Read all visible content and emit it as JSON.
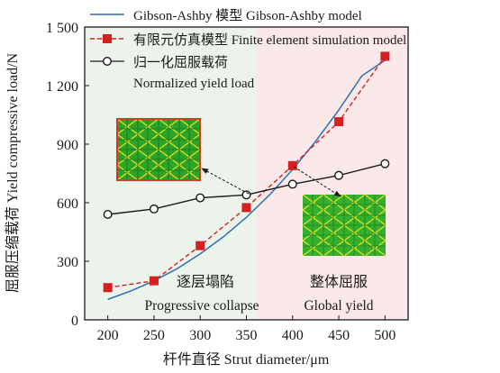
{
  "chart_data": {
    "type": "line",
    "xlabel": "杆件直径 Strut diameter/μm",
    "ylabel": "屈服压缩载荷 Yield compressive load/N",
    "xlim": [
      175,
      525
    ],
    "ylim": [
      0,
      1500
    ],
    "xticks": [
      200,
      250,
      300,
      350,
      400,
      450,
      500
    ],
    "xtick_labels": [
      "200",
      "250",
      "300",
      "350",
      "400",
      "450",
      "500"
    ],
    "yticks": [
      0,
      300,
      600,
      900,
      1200,
      1500
    ],
    "ytick_labels": [
      "0",
      "300",
      "600",
      "900",
      "1 200",
      "1 500"
    ],
    "regions": [
      {
        "x_range": [
          175,
          360
        ],
        "color": "#ebf3eb",
        "label_cn": "逐层塌陷",
        "label_en": "Progressive collapse"
      },
      {
        "x_range": [
          360,
          525
        ],
        "color": "#fbe8e8",
        "label_cn": "整体屈服",
        "label_en": "Global yield"
      }
    ],
    "series": [
      {
        "name": "Gibson-Ashby 模型 Gibson-Ashby model",
        "style": "solid-line",
        "color": "#2f6fb3",
        "x": [
          200,
          225,
          250,
          275,
          300,
          325,
          350,
          375,
          400,
          425,
          450,
          475,
          500
        ],
        "y": [
          105,
          148,
          200,
          262,
          338,
          425,
          525,
          640,
          770,
          915,
          1075,
          1250,
          1330
        ]
      },
      {
        "name": "有限元仿真模型 Finite element simulation model",
        "style": "dashed-line-square-markers",
        "color": "#d42020",
        "x": [
          200,
          250,
          300,
          350,
          400,
          450,
          500
        ],
        "y": [
          165,
          200,
          380,
          575,
          790,
          1015,
          1350
        ]
      },
      {
        "name": "归一化屈服载荷 Normalized yield load",
        "style": "solid-line-open-circles",
        "color": "#1a1a1a",
        "x": [
          200,
          250,
          300,
          350,
          400,
          450,
          500
        ],
        "y": [
          540,
          568,
          625,
          640,
          695,
          740,
          800
        ]
      }
    ],
    "legend": {
      "position": "top"
    },
    "grid": false
  }
}
